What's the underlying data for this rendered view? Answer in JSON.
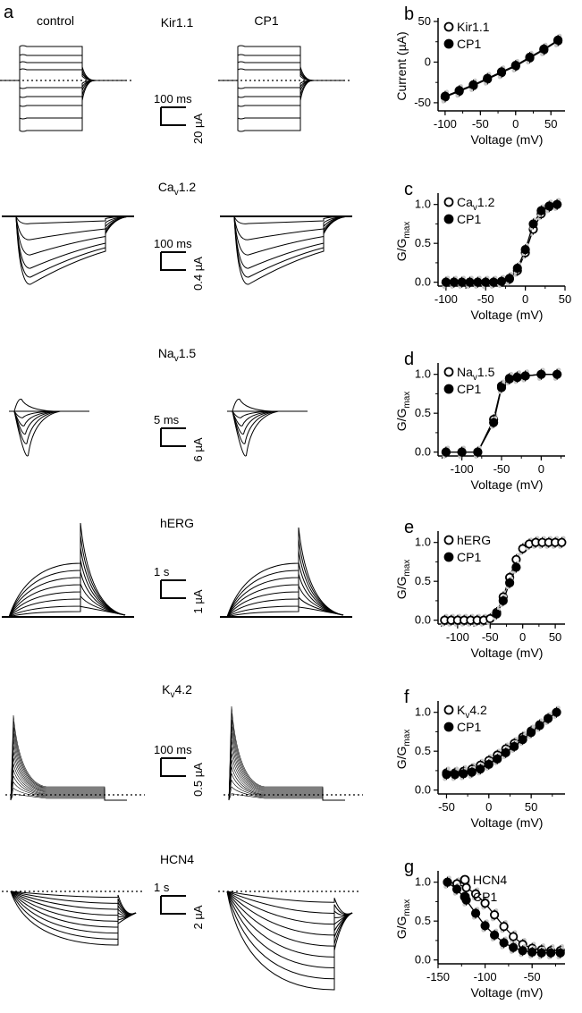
{
  "figure": {
    "panel_a": "a",
    "col_control": "control",
    "col_cp1": "CP1"
  },
  "rows": [
    {
      "channel": {
        "main": "Kir1.1",
        "sub": "",
        "tail": ""
      },
      "scale_time": "100 ms",
      "scale_amp": "20 µA"
    },
    {
      "channel": {
        "main": "Ca",
        "sub": "v",
        "tail": "1.2"
      },
      "scale_time": "100 ms",
      "scale_amp": "0.4 µA"
    },
    {
      "channel": {
        "main": "Na",
        "sub": "v",
        "tail": "1.5"
      },
      "scale_time": "5 ms",
      "scale_amp": "6 µA"
    },
    {
      "channel": {
        "main": "hERG",
        "sub": "",
        "tail": ""
      },
      "scale_time": "1 s",
      "scale_amp": "1 µA"
    },
    {
      "channel": {
        "main": "K",
        "sub": "v",
        "tail": "4.2"
      },
      "scale_time": "100 ms",
      "scale_amp": "0.5 µA"
    },
    {
      "channel": {
        "main": "HCN4",
        "sub": "",
        "tail": ""
      },
      "scale_time": "1 s",
      "scale_amp": "2 µA"
    }
  ],
  "chart_data": [
    {
      "panel": "b",
      "type": "line",
      "xlabel": "Voltage (mV)",
      "ylabel": {
        "main": "Current (µA)",
        "sub": ""
      },
      "xlim": [
        -110,
        70
      ],
      "ylim": [
        -60,
        50
      ],
      "xticks": [
        -100,
        -50,
        0,
        50
      ],
      "yticks": [
        -50,
        0,
        50
      ],
      "legend": "top-left",
      "series": [
        {
          "name": {
            "main": "Kir1.1",
            "sub": "",
            "tail": ""
          },
          "marker": "open",
          "x": [
            -100,
            -80,
            -60,
            -40,
            -20,
            0,
            20,
            40,
            60
          ],
          "y": [
            -43,
            -36,
            -29,
            -21,
            -13,
            -5,
            5,
            15,
            26
          ]
        },
        {
          "name": {
            "main": "CP1",
            "sub": "",
            "tail": ""
          },
          "marker": "filled",
          "x": [
            -100,
            -80,
            -60,
            -40,
            -20,
            0,
            20,
            40,
            60
          ],
          "y": [
            -42,
            -35,
            -28,
            -20,
            -12,
            -4,
            6,
            16,
            27
          ]
        }
      ]
    },
    {
      "panel": "c",
      "type": "line",
      "xlabel": "Voltage (mV)",
      "ylabel": {
        "main": "G/G",
        "sub": "max"
      },
      "xlim": [
        -110,
        50
      ],
      "ylim": [
        -0.05,
        1.1
      ],
      "xticks": [
        -100,
        -50,
        0,
        50
      ],
      "yticks": [
        0.0,
        0.5,
        1.0
      ],
      "legend": "top-left",
      "series": [
        {
          "name": {
            "main": "Ca",
            "sub": "v",
            "tail": "1.2"
          },
          "marker": "open",
          "x": [
            -100,
            -90,
            -80,
            -70,
            -60,
            -50,
            -40,
            -30,
            -20,
            -10,
            0,
            10,
            20,
            30,
            40
          ],
          "y": [
            0,
            0,
            0,
            0,
            0,
            0,
            0,
            0.01,
            0.04,
            0.15,
            0.38,
            0.68,
            0.88,
            0.97,
            1.0
          ]
        },
        {
          "name": {
            "main": "CP1",
            "sub": "",
            "tail": ""
          },
          "marker": "filled",
          "x": [
            -100,
            -90,
            -80,
            -70,
            -60,
            -50,
            -40,
            -30,
            -20,
            -10,
            0,
            10,
            20,
            30,
            40
          ],
          "y": [
            0,
            0,
            0,
            0,
            0,
            0,
            0,
            0.01,
            0.05,
            0.18,
            0.42,
            0.75,
            0.92,
            0.98,
            1.0
          ]
        }
      ]
    },
    {
      "panel": "d",
      "type": "line",
      "xlabel": "Voltage (mV)",
      "ylabel": {
        "main": "G/G",
        "sub": "max"
      },
      "xlim": [
        -130,
        30
      ],
      "ylim": [
        -0.05,
        1.1
      ],
      "xticks": [
        -100,
        -50,
        0
      ],
      "yticks": [
        0.0,
        0.5,
        1.0
      ],
      "legend": "top-left",
      "series": [
        {
          "name": {
            "main": "Na",
            "sub": "v",
            "tail": "1.5"
          },
          "marker": "open",
          "x": [
            -120,
            -100,
            -80,
            -60,
            -50,
            -40,
            -30,
            -20,
            0,
            20
          ],
          "y": [
            0,
            0,
            0,
            0.42,
            0.85,
            0.95,
            0.97,
            0.98,
            1.0,
            1.0
          ]
        },
        {
          "name": {
            "main": "CP1",
            "sub": "",
            "tail": ""
          },
          "marker": "filled",
          "x": [
            -120,
            -100,
            -80,
            -60,
            -50,
            -40,
            -30,
            -20,
            0,
            20
          ],
          "y": [
            0,
            0,
            0,
            0.38,
            0.83,
            0.94,
            0.96,
            0.98,
            1.0,
            1.0
          ]
        }
      ]
    },
    {
      "panel": "e",
      "type": "line",
      "xlabel": "Voltage (mV)",
      "ylabel": {
        "main": "G/G",
        "sub": "max"
      },
      "xlim": [
        -130,
        65
      ],
      "ylim": [
        -0.05,
        1.1
      ],
      "xticks": [
        -100,
        -50,
        0,
        50
      ],
      "yticks": [
        0.0,
        0.5,
        1.0
      ],
      "legend": "top-left",
      "series": [
        {
          "name": {
            "main": "hERG",
            "sub": "",
            "tail": ""
          },
          "marker": "open",
          "x": [
            -120,
            -110,
            -100,
            -90,
            -80,
            -70,
            -60,
            -50,
            -40,
            -30,
            -20,
            -10,
            0,
            10,
            20,
            30,
            40,
            50,
            60
          ],
          "y": [
            0,
            0,
            0,
            0,
            0,
            0,
            0,
            0.02,
            0.1,
            0.3,
            0.55,
            0.78,
            0.92,
            0.98,
            1.0,
            1.0,
            1.0,
            1.0,
            1.0
          ]
        },
        {
          "name": {
            "main": "CP1",
            "sub": "",
            "tail": ""
          },
          "marker": "filled",
          "x": [
            -40,
            -30,
            -20,
            -10
          ],
          "y": [
            0.08,
            0.25,
            0.48,
            0.68
          ]
        }
      ]
    },
    {
      "panel": "f",
      "type": "line",
      "xlabel": "Voltage (mV)",
      "ylabel": {
        "main": "G/G",
        "sub": "max"
      },
      "xlim": [
        -60,
        90
      ],
      "ylim": [
        -0.05,
        1.1
      ],
      "xticks": [
        -50,
        0,
        50
      ],
      "yticks": [
        0.0,
        0.5,
        1.0
      ],
      "legend": "top-left",
      "series": [
        {
          "name": {
            "main": "K",
            "sub": "v",
            "tail": "4.2"
          },
          "marker": "open",
          "x": [
            -50,
            -40,
            -30,
            -20,
            -10,
            0,
            10,
            20,
            30,
            40,
            50,
            60,
            70,
            80
          ],
          "y": [
            0.22,
            0.22,
            0.24,
            0.27,
            0.32,
            0.38,
            0.45,
            0.53,
            0.6,
            0.68,
            0.76,
            0.84,
            0.92,
            1.0
          ]
        },
        {
          "name": {
            "main": "CP1",
            "sub": "",
            "tail": ""
          },
          "marker": "filled",
          "x": [
            -50,
            -40,
            -30,
            -20,
            -10,
            0,
            10,
            20,
            30,
            40,
            50,
            60,
            70,
            80
          ],
          "y": [
            0.2,
            0.2,
            0.21,
            0.23,
            0.27,
            0.33,
            0.4,
            0.48,
            0.56,
            0.65,
            0.74,
            0.83,
            0.92,
            1.0
          ]
        }
      ]
    },
    {
      "panel": "g",
      "type": "line",
      "xlabel": "Voltage (mV)",
      "ylabel": {
        "main": "G/G",
        "sub": "max"
      },
      "xlim": [
        -150,
        -15
      ],
      "ylim": [
        -0.05,
        1.1
      ],
      "xticks": [
        -150,
        -100,
        -50
      ],
      "yticks": [
        0.0,
        0.5,
        1.0
      ],
      "legend": "top-right",
      "series": [
        {
          "name": {
            "main": "HCN4",
            "sub": "",
            "tail": ""
          },
          "marker": "open",
          "x": [
            -140,
            -130,
            -120,
            -110,
            -100,
            -90,
            -80,
            -70,
            -60,
            -50,
            -40,
            -30,
            -20
          ],
          "y": [
            1.0,
            0.98,
            0.93,
            0.85,
            0.73,
            0.58,
            0.43,
            0.3,
            0.2,
            0.15,
            0.13,
            0.12,
            0.12
          ]
        },
        {
          "name": {
            "main": "CP1",
            "sub": "",
            "tail": ""
          },
          "marker": "filled",
          "x": [
            -140,
            -130,
            -120,
            -110,
            -100,
            -90,
            -80,
            -70,
            -60,
            -50,
            -40,
            -30,
            -20
          ],
          "y": [
            1.0,
            0.91,
            0.77,
            0.6,
            0.44,
            0.32,
            0.22,
            0.16,
            0.12,
            0.1,
            0.09,
            0.09,
            0.09
          ]
        }
      ]
    }
  ]
}
